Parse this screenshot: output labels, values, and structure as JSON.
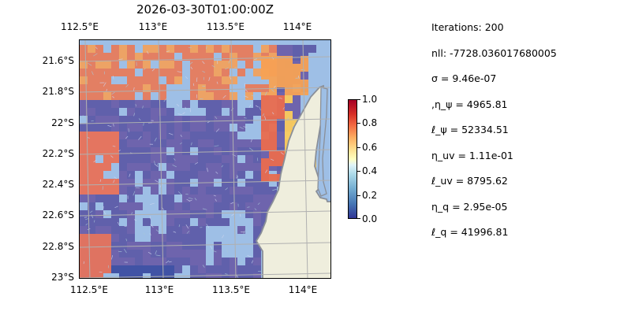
{
  "map": {
    "title": "2026-03-30T01:00:00Z",
    "x_ticks": [
      "112.5°E",
      "113°E",
      "113.5°E",
      "114°E"
    ],
    "y_ticks": [
      "21.6°S",
      "21.8°S",
      "22°S",
      "22.2°S",
      "22.4°S",
      "22.6°S",
      "22.8°S",
      "23°S"
    ],
    "extent": {
      "lon": [
        112.5,
        114.2
      ],
      "lat": [
        -23.0,
        -21.45
      ]
    },
    "colors": {
      "ocean": "#9ebfe6",
      "land": "#efeedd",
      "coast": "#8a8f98",
      "grid": "#b0b0b0"
    }
  },
  "colorbar": {
    "ticks": [
      "1.0",
      "0.8",
      "0.6",
      "0.4",
      "0.2",
      "0.0"
    ],
    "range": [
      0.0,
      1.0
    ]
  },
  "params": {
    "iterations": "Iterations: 200",
    "nll": "nll: -7728.036017680005",
    "sigma": "σ = 9.46e-07",
    "eta_psi": ",η_ψ = 4965.81",
    "ell_psi": "ℓ_ψ = 52334.51",
    "eta_uv": "η_uv = 1.11e-01",
    "ell_uv": "ℓ_uv = 8795.62",
    "eta_q": "η_q = 2.95e-05",
    "ell_q": "ℓ_q = 41996.81"
  }
}
